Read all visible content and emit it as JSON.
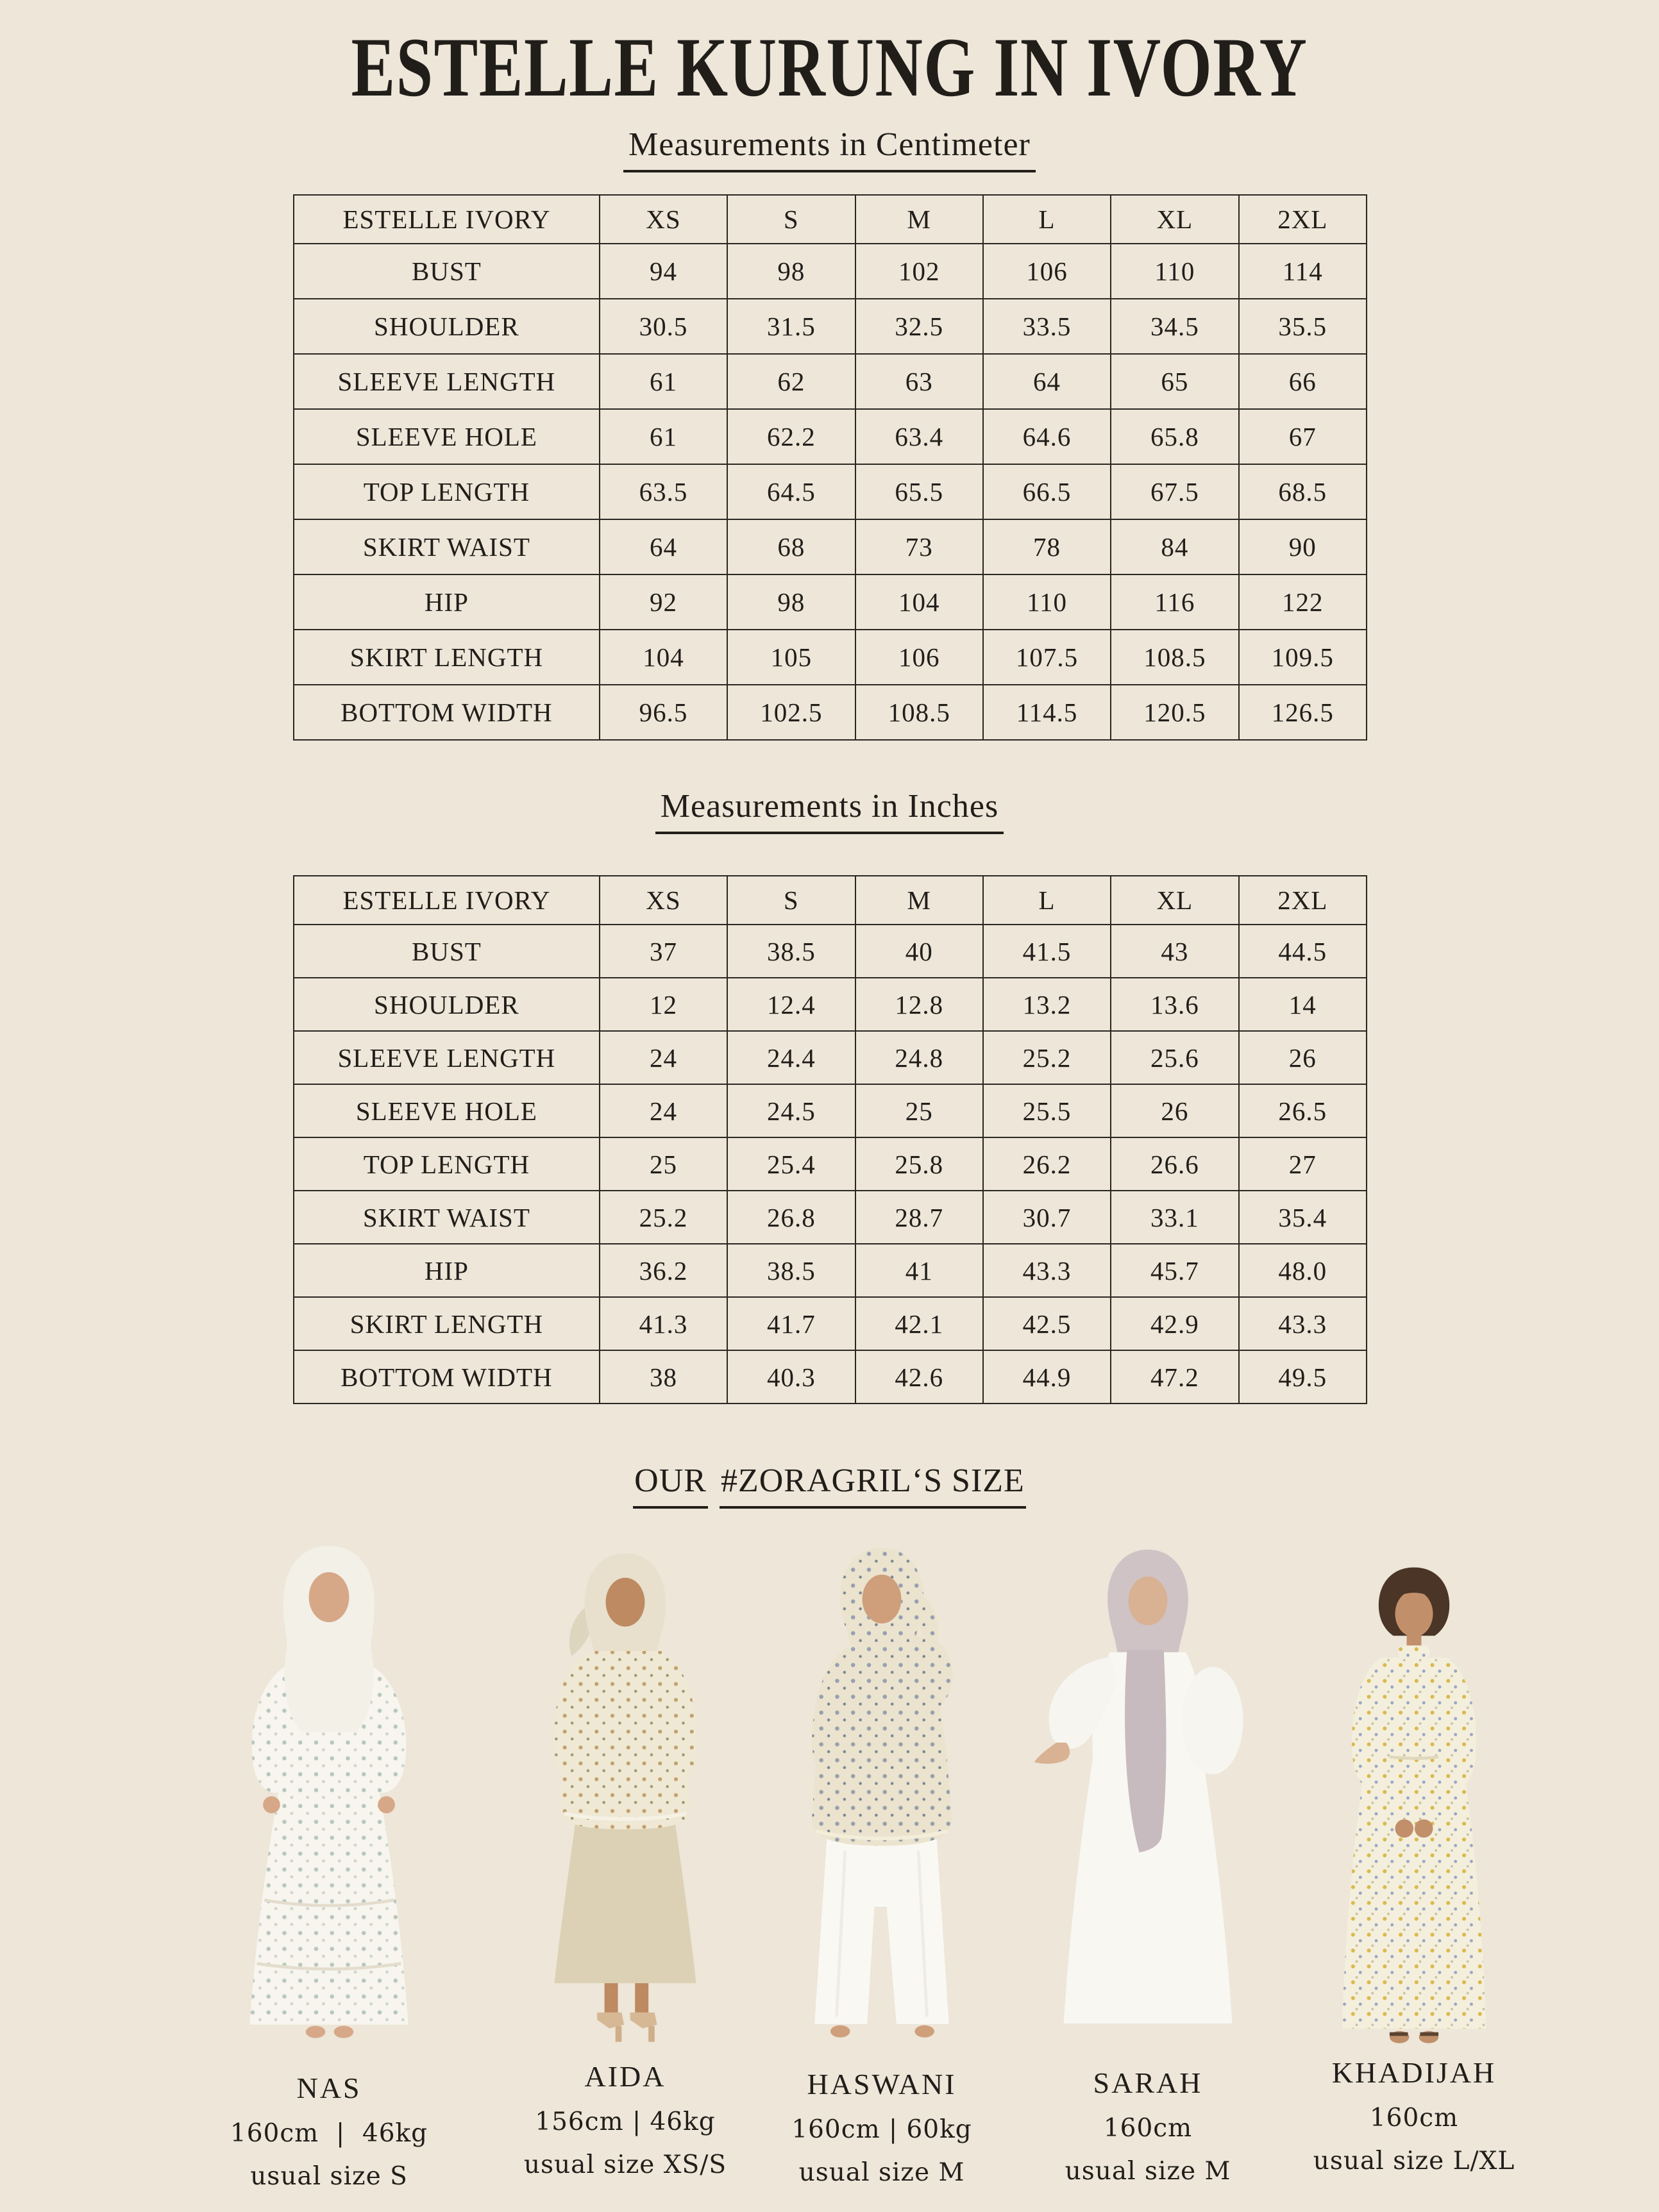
{
  "page": {
    "title": "ESTELLE KURUNG IN IVORY",
    "background_color": "#EDE6D9",
    "text_color": "#211E1A"
  },
  "sections": {
    "cm": {
      "heading": "Measurements in Centimeter"
    },
    "inches": {
      "heading": "Measurements in Inches"
    },
    "models": {
      "heading_parts": [
        "OUR",
        "#ZORAGRIL‘S SIZE"
      ]
    }
  },
  "size_columns": [
    "XS",
    "S",
    "M",
    "L",
    "XL",
    "2XL"
  ],
  "tables": {
    "cm": {
      "corner_label": "ESTELLE IVORY",
      "rows": [
        {
          "label": "BUST",
          "values": [
            "94",
            "98",
            "102",
            "106",
            "110",
            "114"
          ]
        },
        {
          "label": "SHOULDER",
          "values": [
            "30.5",
            "31.5",
            "32.5",
            "33.5",
            "34.5",
            "35.5"
          ]
        },
        {
          "label": "SLEEVE LENGTH",
          "values": [
            "61",
            "62",
            "63",
            "64",
            "65",
            "66"
          ]
        },
        {
          "label": "SLEEVE HOLE",
          "values": [
            "61",
            "62.2",
            "63.4",
            "64.6",
            "65.8",
            "67"
          ]
        },
        {
          "label": "TOP LENGTH",
          "values": [
            "63.5",
            "64.5",
            "65.5",
            "66.5",
            "67.5",
            "68.5"
          ]
        },
        {
          "label": "SKIRT WAIST",
          "values": [
            "64",
            "68",
            "73",
            "78",
            "84",
            "90"
          ]
        },
        {
          "label": "HIP",
          "values": [
            "92",
            "98",
            "104",
            "110",
            "116",
            "122"
          ]
        },
        {
          "label": "SKIRT LENGTH",
          "values": [
            "104",
            "105",
            "106",
            "107.5",
            "108.5",
            "109.5"
          ]
        },
        {
          "label": "BOTTOM WIDTH",
          "values": [
            "96.5",
            "102.5",
            "108.5",
            "114.5",
            "120.5",
            "126.5"
          ]
        }
      ]
    },
    "inches": {
      "corner_label": "ESTELLE IVORY",
      "rows": [
        {
          "label": "BUST",
          "values": [
            "37",
            "38.5",
            "40",
            "41.5",
            "43",
            "44.5"
          ]
        },
        {
          "label": "SHOULDER",
          "values": [
            "12",
            "12.4",
            "12.8",
            "13.2",
            "13.6",
            "14"
          ]
        },
        {
          "label": "SLEEVE LENGTH",
          "values": [
            "24",
            "24.4",
            "24.8",
            "25.2",
            "25.6",
            "26"
          ]
        },
        {
          "label": "SLEEVE HOLE",
          "values": [
            "24",
            "24.5",
            "25",
            "25.5",
            "26",
            "26.5"
          ]
        },
        {
          "label": "TOP LENGTH",
          "values": [
            "25",
            "25.4",
            "25.8",
            "26.2",
            "26.6",
            "27"
          ]
        },
        {
          "label": "SKIRT WAIST",
          "values": [
            "25.2",
            "26.8",
            "28.7",
            "30.7",
            "33.1",
            "35.4"
          ]
        },
        {
          "label": "HIP",
          "values": [
            "36.2",
            "38.5",
            "41",
            "43.3",
            "45.7",
            "48.0"
          ]
        },
        {
          "label": "SKIRT LENGTH",
          "values": [
            "41.3",
            "41.7",
            "42.1",
            "42.5",
            "42.9",
            "43.3"
          ]
        },
        {
          "label": "BOTTOM WIDTH",
          "values": [
            "38",
            "40.3",
            "42.6",
            "44.9",
            "47.2",
            "49.5"
          ]
        }
      ]
    }
  },
  "models": [
    {
      "name": "NAS",
      "stats": "160cm  |  46kg",
      "size": "usual size S"
    },
    {
      "name": "AIDA",
      "stats": "156cm | 46kg",
      "size": "usual size XS/S"
    },
    {
      "name": "HASWANI",
      "stats": "160cm | 60kg",
      "size": "usual size M"
    },
    {
      "name": "SARAH",
      "stats": "160cm",
      "size": "usual size M"
    },
    {
      "name": "KHADIJAH",
      "stats": "160cm",
      "size": "usual size L/XL"
    }
  ]
}
